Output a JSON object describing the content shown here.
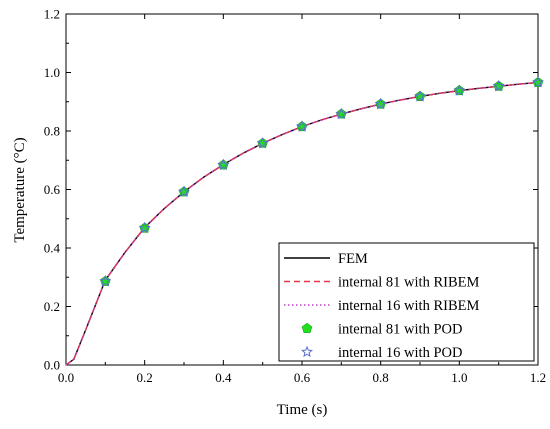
{
  "chart_data": {
    "type": "line",
    "xlabel": "Time (s)",
    "ylabel": "Temperature (°C)",
    "xlim": [
      0,
      1.2
    ],
    "ylim": [
      0,
      1.2
    ],
    "xticks": [
      "0.0",
      "0.2",
      "0.4",
      "0.6",
      "0.8",
      "1.0",
      "1.2"
    ],
    "yticks": [
      "0.0",
      "0.2",
      "0.4",
      "0.6",
      "0.8",
      "1.0",
      "1.2"
    ],
    "grid": false,
    "legend_position": "bottom-right",
    "x": [
      0,
      0.02,
      0.05,
      0.1,
      0.15,
      0.2,
      0.25,
      0.3,
      0.35,
      0.4,
      0.45,
      0.5,
      0.55,
      0.6,
      0.65,
      0.7,
      0.75,
      0.8,
      0.85,
      0.9,
      0.95,
      1.0,
      1.05,
      1.1,
      1.15,
      1.2
    ],
    "series": [
      {
        "name": "FEM",
        "style": "solid",
        "color": "#000000",
        "values": [
          0,
          0.02,
          0.12,
          0.29,
          0.385,
          0.47,
          0.535,
          0.592,
          0.642,
          0.685,
          0.724,
          0.758,
          0.788,
          0.815,
          0.838,
          0.858,
          0.876,
          0.892,
          0.906,
          0.918,
          0.929,
          0.938,
          0.946,
          0.953,
          0.96,
          0.966
        ]
      },
      {
        "name": "internal 81 with RIBEM",
        "style": "dashed",
        "color": "#e8334a",
        "values": [
          0,
          0.02,
          0.12,
          0.29,
          0.385,
          0.47,
          0.535,
          0.592,
          0.642,
          0.685,
          0.724,
          0.758,
          0.788,
          0.815,
          0.838,
          0.858,
          0.876,
          0.892,
          0.906,
          0.918,
          0.929,
          0.938,
          0.946,
          0.953,
          0.96,
          0.966
        ]
      },
      {
        "name": "internal 16 with RIBEM",
        "style": "dotted",
        "color": "#c040c0",
        "values": [
          0,
          0.02,
          0.12,
          0.29,
          0.385,
          0.47,
          0.535,
          0.592,
          0.642,
          0.685,
          0.724,
          0.758,
          0.788,
          0.815,
          0.838,
          0.858,
          0.876,
          0.892,
          0.906,
          0.918,
          0.929,
          0.938,
          0.946,
          0.953,
          0.96,
          0.966
        ]
      }
    ],
    "marker_x": [
      0.1,
      0.2,
      0.3,
      0.4,
      0.5,
      0.6,
      0.7,
      0.8,
      0.9,
      1.0,
      1.1,
      1.2
    ],
    "marker_series": [
      {
        "name": "internal 81 with POD",
        "marker": "pentagon",
        "color": "#22dd22",
        "values": [
          0.286,
          0.468,
          0.592,
          0.684,
          0.758,
          0.815,
          0.858,
          0.892,
          0.918,
          0.938,
          0.953,
          0.966
        ]
      },
      {
        "name": "internal 16 with POD",
        "marker": "star",
        "color": "#5a6fd0",
        "values": [
          0.286,
          0.468,
          0.592,
          0.684,
          0.758,
          0.815,
          0.858,
          0.892,
          0.918,
          0.938,
          0.953,
          0.966
        ]
      }
    ]
  }
}
